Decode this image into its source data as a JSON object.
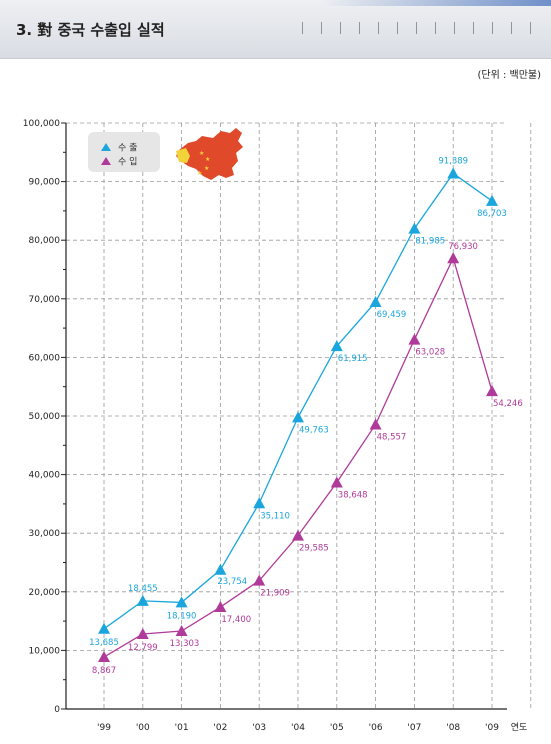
{
  "page": {
    "title": "3. 對 중국 수출입 실적",
    "unit": "(단위 : 백만불)"
  },
  "chart_data": {
    "type": "line",
    "categories": [
      "'99",
      "'00",
      "'01",
      "'02",
      "'03",
      "'04",
      "'05",
      "'06",
      "'07",
      "'08",
      "'09"
    ],
    "xlabel": "연도",
    "ylim": [
      0,
      100000
    ],
    "yticks": [
      "0",
      "10,000",
      "20,000",
      "30,000",
      "40,000",
      "50,000",
      "60,000",
      "70,000",
      "80,000",
      "90,000",
      "100,000"
    ],
    "grid": true,
    "legend_position": "top-left",
    "series": [
      {
        "name": "수 출",
        "color": "#1aa6dd",
        "values": [
          13685,
          18455,
          18190,
          23754,
          35110,
          49763,
          61915,
          69459,
          81985,
          91389,
          86703
        ],
        "labels": [
          "13,685",
          "18,455",
          "18,190",
          "23,754",
          "35,110",
          "49,763",
          "61,915",
          "69,459",
          "81,985",
          "91,389",
          "86,703"
        ]
      },
      {
        "name": "수 입",
        "color": "#b03a99",
        "values": [
          8867,
          12799,
          13303,
          17400,
          21909,
          29585,
          38648,
          48557,
          63028,
          76930,
          54246
        ],
        "labels": [
          "8,867",
          "12,799",
          "13,303",
          "17,400",
          "21,909",
          "29,585",
          "38,648",
          "48,557",
          "63,028",
          "76,930",
          "54,246"
        ]
      }
    ]
  }
}
